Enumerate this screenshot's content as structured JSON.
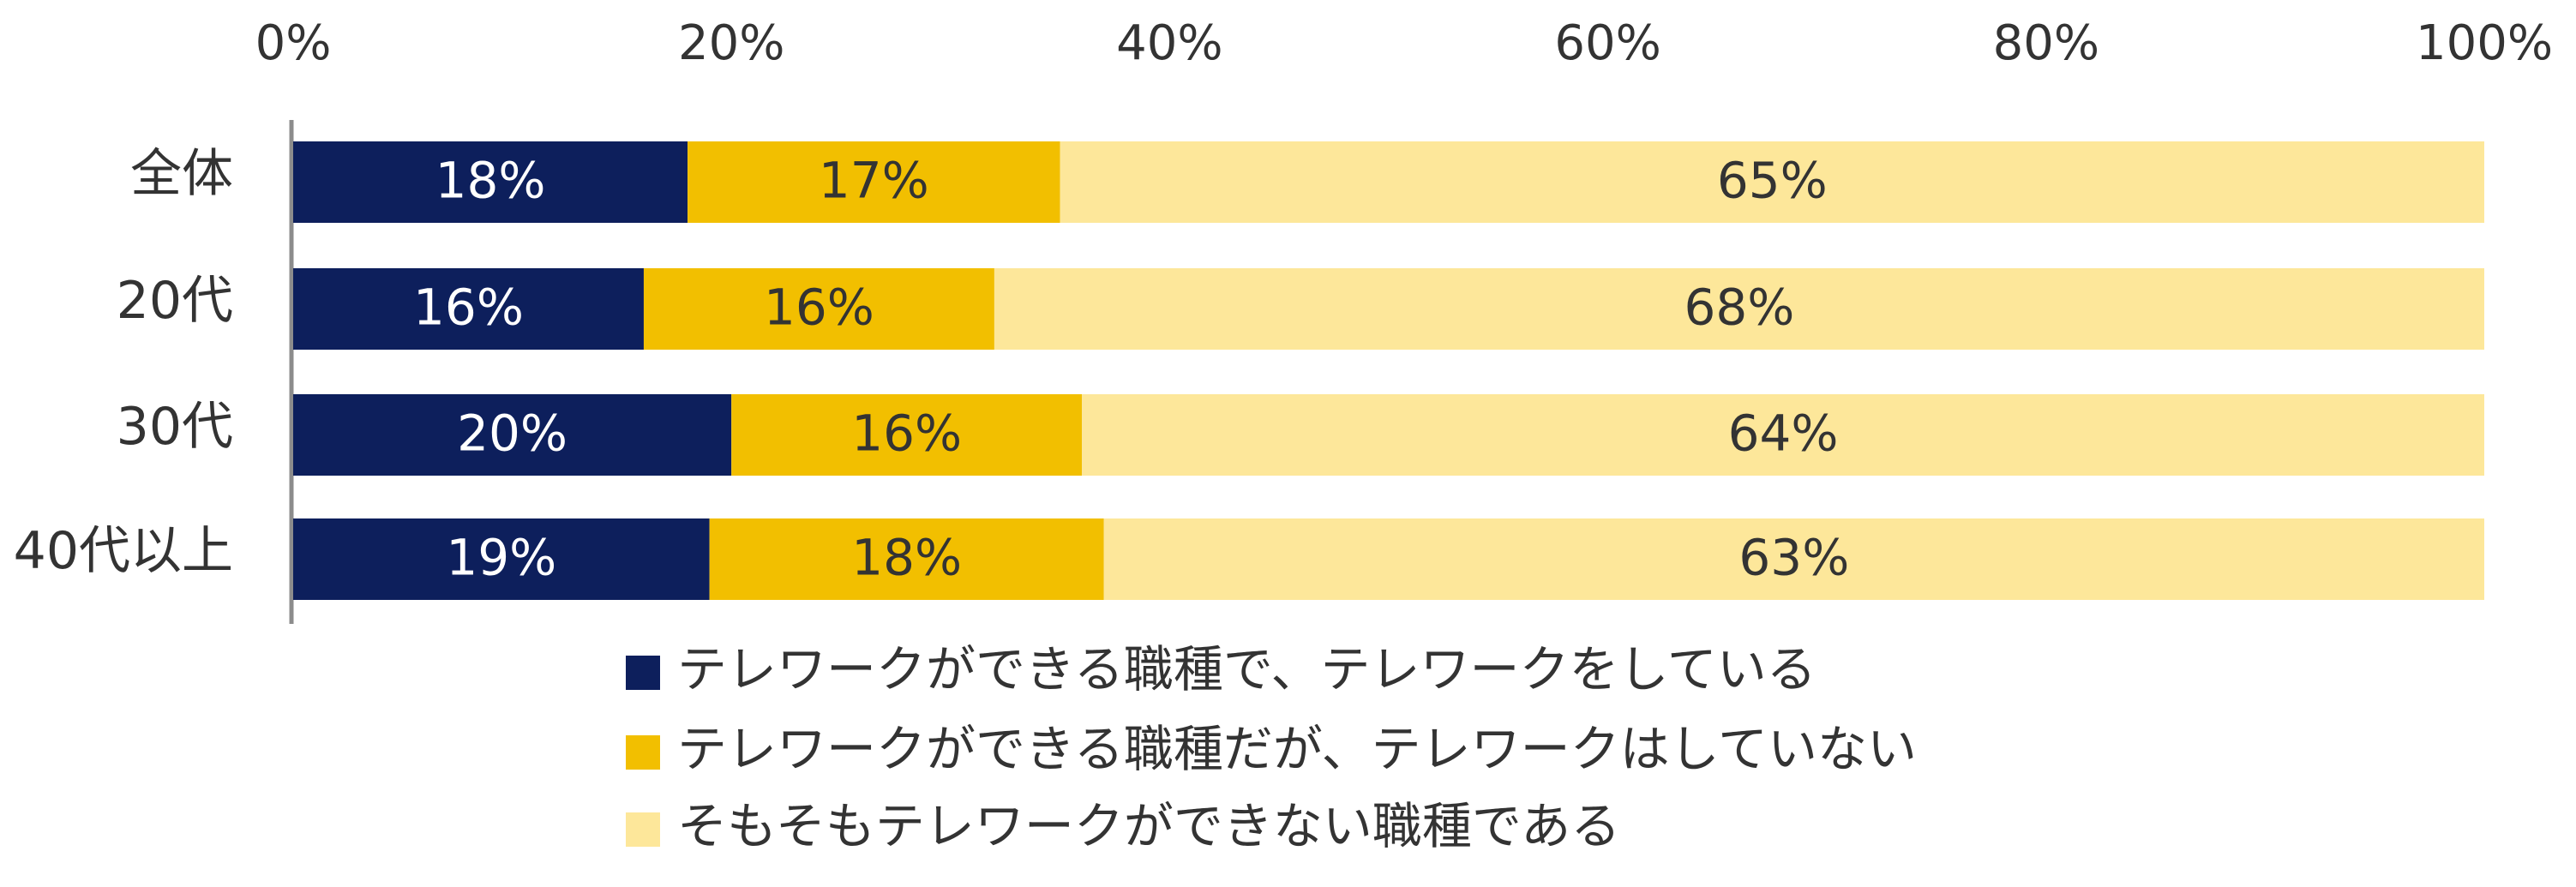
{
  "chart_data": {
    "type": "bar",
    "orientation": "horizontal",
    "stacked": true,
    "categories": [
      "全体",
      "20代",
      "30代",
      "40代以上"
    ],
    "series": [
      {
        "name": "テレワークができる職種で、テレワークをしている",
        "values": [
          18,
          16,
          20,
          19
        ],
        "labels": [
          "18%",
          "16%",
          "20%",
          "19%"
        ],
        "color": "#0d1f5c",
        "label_color": "#ffffff"
      },
      {
        "name": "テレワークができる職種だが、テレワークはしていない",
        "values": [
          17,
          16,
          16,
          18
        ],
        "labels": [
          "17%",
          "16%",
          "16%",
          "18%"
        ],
        "color": "#f2bf00",
        "label_color": "#333333"
      },
      {
        "name": "そもそもテレワークができない職種である",
        "values": [
          65,
          68,
          64,
          63
        ],
        "labels": [
          "65%",
          "68%",
          "64%",
          "63%"
        ],
        "color": "#fde79a",
        "label_color": "#333333"
      }
    ],
    "x_ticks": [
      "0%",
      "20%",
      "40%",
      "60%",
      "80%",
      "100%"
    ],
    "x_tick_values": [
      0,
      20,
      40,
      60,
      80,
      100
    ],
    "xlim": [
      0,
      100
    ],
    "x_axis_position": "top",
    "grid": false,
    "legend_position": "bottom"
  }
}
